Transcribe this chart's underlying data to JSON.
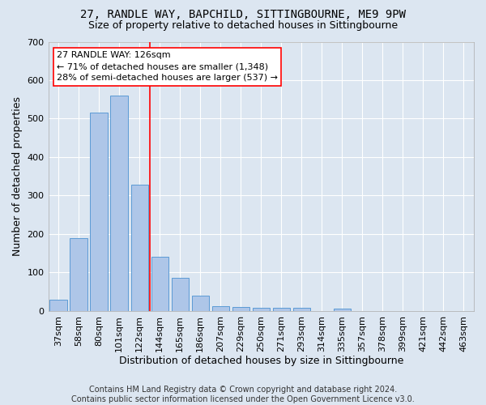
{
  "title": "27, RANDLE WAY, BAPCHILD, SITTINGBOURNE, ME9 9PW",
  "subtitle": "Size of property relative to detached houses in Sittingbourne",
  "xlabel": "Distribution of detached houses by size in Sittingbourne",
  "ylabel": "Number of detached properties",
  "categories": [
    "37sqm",
    "58sqm",
    "80sqm",
    "101sqm",
    "122sqm",
    "144sqm",
    "165sqm",
    "186sqm",
    "207sqm",
    "229sqm",
    "250sqm",
    "271sqm",
    "293sqm",
    "314sqm",
    "335sqm",
    "357sqm",
    "378sqm",
    "399sqm",
    "421sqm",
    "442sqm",
    "463sqm"
  ],
  "values": [
    30,
    190,
    515,
    560,
    328,
    142,
    87,
    40,
    13,
    10,
    8,
    8,
    8,
    0,
    7,
    0,
    0,
    0,
    0,
    0,
    0
  ],
  "bar_color": "#aec6e8",
  "bar_edge_color": "#5b9bd5",
  "background_color": "#dce6f1",
  "grid_color": "#ffffff",
  "vline_x": 4.5,
  "vline_color": "red",
  "annotation_text": "27 RANDLE WAY: 126sqm\n← 71% of detached houses are smaller (1,348)\n28% of semi-detached houses are larger (537) →",
  "annotation_box_color": "white",
  "annotation_box_edge": "red",
  "ylim": [
    0,
    700
  ],
  "yticks": [
    0,
    100,
    200,
    300,
    400,
    500,
    600,
    700
  ],
  "footnote": "Contains HM Land Registry data © Crown copyright and database right 2024.\nContains public sector information licensed under the Open Government Licence v3.0.",
  "title_fontsize": 10,
  "subtitle_fontsize": 9,
  "xlabel_fontsize": 9,
  "ylabel_fontsize": 9,
  "tick_fontsize": 8,
  "annot_fontsize": 8,
  "footnote_fontsize": 7
}
